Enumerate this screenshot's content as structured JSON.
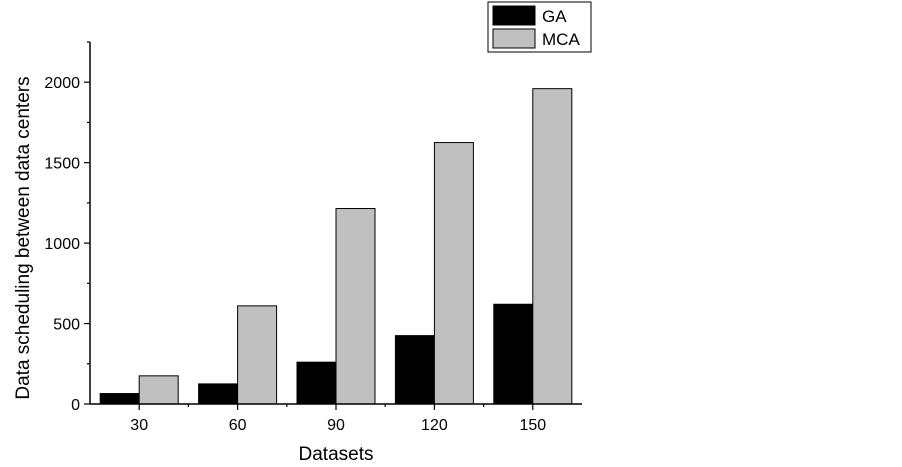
{
  "chart_data": {
    "type": "bar",
    "title": "",
    "xlabel": "Datasets",
    "ylabel": "Data scheduling between data centers",
    "categories": [
      "30",
      "60",
      "90",
      "120",
      "150"
    ],
    "series": [
      {
        "name": "GA",
        "color": "#000000",
        "values": [
          65,
          125,
          260,
          425,
          620
        ]
      },
      {
        "name": "MCA",
        "color": "#c0c0c0",
        "values": [
          175,
          610,
          1215,
          1625,
          1960
        ]
      }
    ],
    "ylim": [
      0,
      2250
    ],
    "yticks": [
      0,
      500,
      1000,
      1500,
      2000
    ],
    "grid": false,
    "legend_position": "top-right"
  }
}
